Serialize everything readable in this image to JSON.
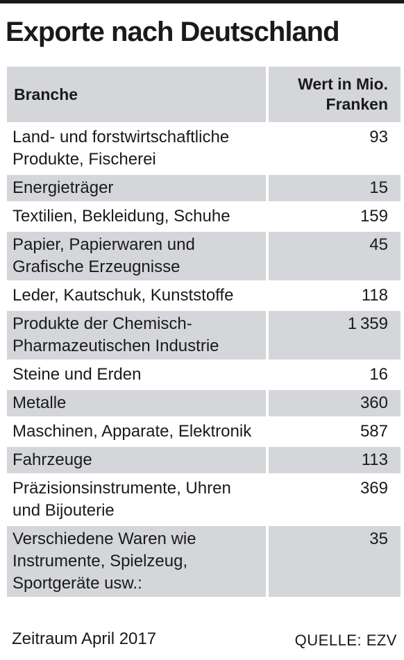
{
  "chart_data": {
    "type": "table",
    "title": "Exporte nach Deutschland",
    "columns": [
      "Branche",
      "Wert in Mio.\nFranken"
    ],
    "rows": [
      {
        "category": "Land- und forstwirtschaftliche Produkte, Fischerei",
        "value_label": "93",
        "value": 93
      },
      {
        "category": "Energieträger",
        "value_label": "15",
        "value": 15
      },
      {
        "category": "Textilien, Bekleidung, Schuhe",
        "value_label": "159",
        "value": 159
      },
      {
        "category": "Papier, Papierwaren und Grafische Erzeugnisse",
        "value_label": "45",
        "value": 45
      },
      {
        "category": "Leder, Kautschuk, Kunststoffe",
        "value_label": "118",
        "value": 118
      },
      {
        "category": "Produkte der Chemisch-Pharmazeutischen Industrie",
        "value_label": "1359",
        "value": 1359
      },
      {
        "category": "Steine und Erden",
        "value_label": "16",
        "value": 16
      },
      {
        "category": "Metalle",
        "value_label": "360",
        "value": 360
      },
      {
        "category": "Maschinen, Apparate, Elektronik",
        "value_label": "587",
        "value": 587
      },
      {
        "category": "Fahrzeuge",
        "value_label": "113",
        "value": 113
      },
      {
        "category": "Präzisionsinstrumente, Uhren und Bijouterie",
        "value_label": "369",
        "value": 369
      },
      {
        "category": "Verschiedene Waren wie Instrumente, Spielzeug, Sportgeräte usw.:",
        "value_label": "35",
        "value": 35
      }
    ],
    "footnote": "Zeitraum April 2017",
    "source": "QUELLE: EZV"
  },
  "colors": {
    "row_shade": "#d4d6d9",
    "text": "#1a1a1a",
    "background": "#ffffff"
  }
}
